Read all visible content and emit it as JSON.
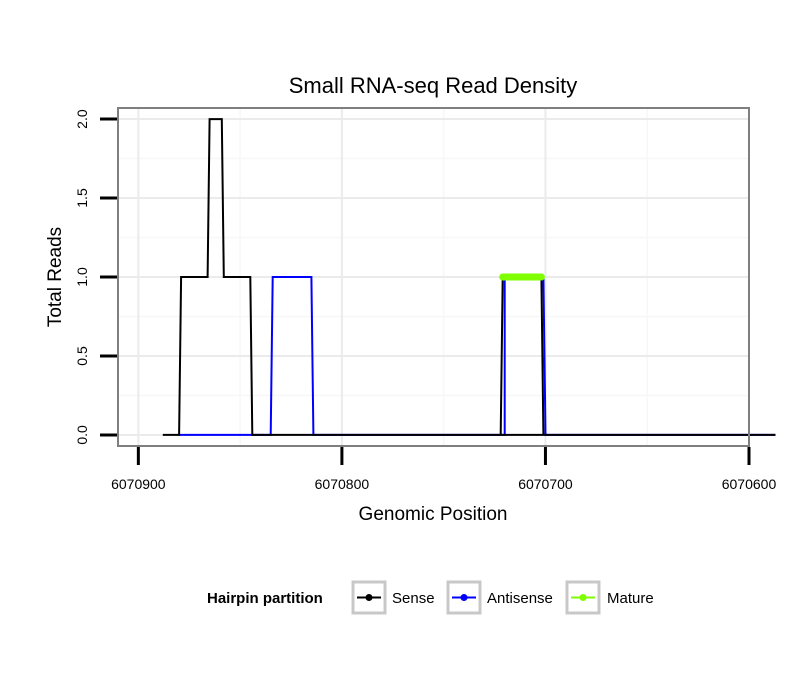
{
  "chart_data": {
    "type": "line",
    "title": "Small RNA-seq Read Density",
    "xlabel": "Genomic Position",
    "ylabel": "Total Reads",
    "xlim": [
      6070910,
      6070600
    ],
    "ylim": [
      -0.07,
      2.07
    ],
    "x_reversed": true,
    "x_ticks": [
      6070900,
      6070800,
      6070700,
      6070600
    ],
    "x_tick_labels": [
      "6070900",
      "6070800",
      "6070700",
      "6070600"
    ],
    "y_ticks": [
      0,
      0.5,
      1,
      1.5,
      2
    ],
    "y_tick_labels": [
      "0.0",
      "0.5",
      "1.0",
      "1.5",
      "2.0"
    ],
    "grid": true,
    "legend": {
      "title": "Hairpin partition",
      "placement": "bottom",
      "entries": [
        "Sense",
        "Antisense",
        "Mature"
      ]
    },
    "colors": {
      "Sense": "#000000",
      "Antisense": "#0000ff",
      "Mature": "#7fff00",
      "panel_border": "#7f7f7f",
      "grid_major": "#ebebeb",
      "grid_minor": "#f7f7f7",
      "legend_key_border": "#c8c8c8"
    },
    "series": [
      {
        "name": "Sense",
        "x": [
          6070888,
          6070880,
          6070879,
          6070866,
          6070865,
          6070859,
          6070858,
          6070845,
          6070844,
          6070587
        ],
        "y": [
          0,
          0,
          1,
          1,
          2,
          2,
          1,
          1,
          0,
          0
        ]
      },
      {
        "name": "Antisense",
        "x": [
          6070880,
          6070835,
          6070834,
          6070815,
          6070814,
          6070720,
          6070720,
          6070701,
          6070700,
          6070587
        ],
        "y": [
          0,
          0,
          1,
          1,
          0,
          0,
          1,
          1,
          0,
          0
        ]
      },
      {
        "name": "Sense",
        "x": [
          6070722,
          6070721,
          6070702,
          6070701
        ],
        "y": [
          0,
          1,
          1,
          0
        ]
      },
      {
        "name": "Mature",
        "x": [
          6070721,
          6070702
        ],
        "y": [
          1,
          1
        ]
      }
    ]
  }
}
